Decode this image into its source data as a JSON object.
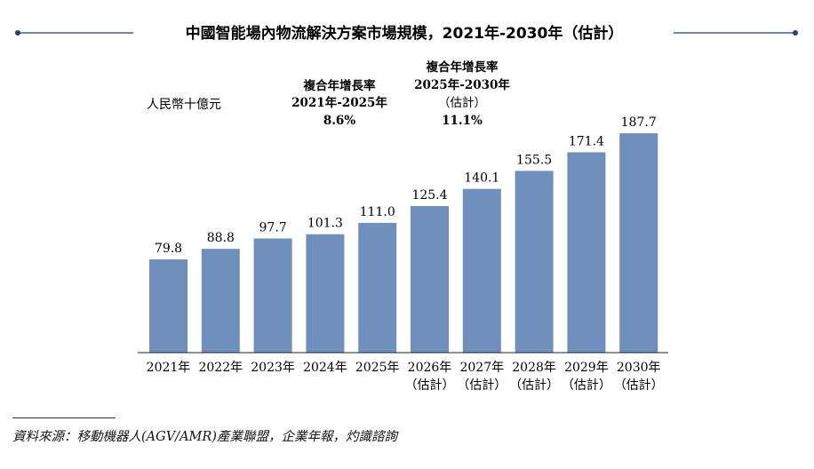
{
  "chart_data": {
    "type": "bar",
    "title": "中國智能場內物流解決方案市場規模，2021年-2030年（估計）",
    "ylabel": "人民幣十億元",
    "categories": [
      "2021年",
      "2022年",
      "2023年",
      "2024年",
      "2025年",
      "2026年",
      "2027年",
      "2028年",
      "2029年",
      "2030年"
    ],
    "category_notes": [
      "",
      "",
      "",
      "",
      "",
      "（估計）",
      "（估計）",
      "（估計）",
      "（估計）",
      "（估計）"
    ],
    "values": [
      79.8,
      88.8,
      97.7,
      101.3,
      111.0,
      125.4,
      140.1,
      155.5,
      171.4,
      187.7
    ],
    "value_labels": [
      "79.8",
      "88.8",
      "97.7",
      "101.3",
      "111.0",
      "125.4",
      "140.1",
      "155.5",
      "171.4",
      "187.7"
    ],
    "ylim": [
      0,
      187.7
    ],
    "grid": false,
    "bar_color": "#6f8fbd",
    "annotations": [
      {
        "lines": [
          "複合年增長率",
          "2021年-2025年"
        ],
        "value": "8.6%"
      },
      {
        "lines": [
          "複合年增長率",
          "2025年-2030年",
          "（估計）"
        ],
        "value": "11.1%"
      }
    ]
  },
  "source": "資料來源：移動機器人(AGV/AMR)產業聯盟，企業年報，灼識諮詢"
}
